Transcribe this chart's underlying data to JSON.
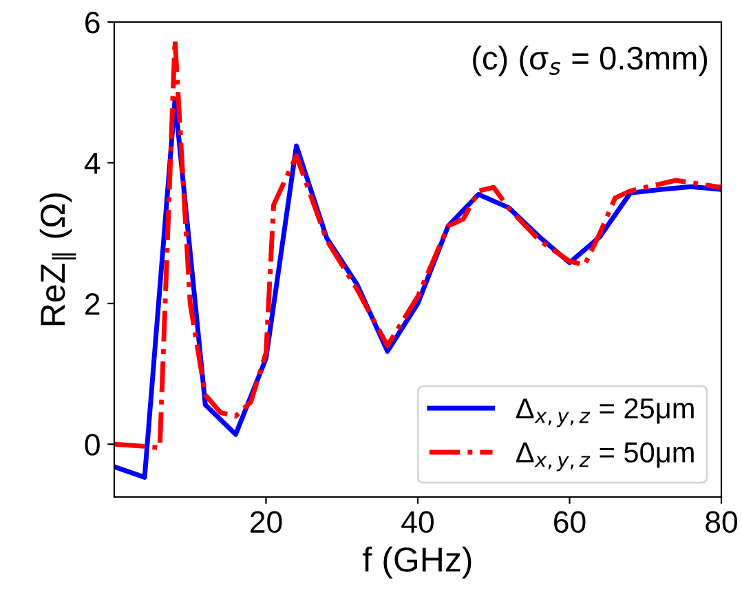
{
  "chart_data": {
    "type": "line",
    "title": "(c) (σ$_{s}$ = 0.3mm)",
    "xlabel": "f (GHz)",
    "ylabel": "ReZ$_{‖}$ (Ω)",
    "xlim": [
      0,
      80
    ],
    "xticks": [
      20,
      40,
      60,
      80
    ],
    "ylim": [
      -0.75,
      6
    ],
    "yticks": [
      0,
      2,
      4,
      6
    ],
    "grid": false,
    "legend": "bottom right",
    "series": [
      {
        "name": "Δ$_{x,y,z}$ = 25μm",
        "color": "#0000ff",
        "line_style": "solid",
        "x": [
          0,
          4,
          8,
          12,
          16,
          20,
          24,
          28,
          32,
          36,
          40,
          44,
          48,
          52,
          56,
          60,
          64,
          68,
          72,
          76,
          80
        ],
        "values": [
          -0.32,
          -0.47,
          4.9,
          0.56,
          0.14,
          1.22,
          4.24,
          2.93,
          2.27,
          1.32,
          2.0,
          3.1,
          3.55,
          3.36,
          2.95,
          2.58,
          2.95,
          3.57,
          3.62,
          3.66,
          3.62
        ]
      },
      {
        "name": "Δ$_{x,y,z}$ = 50μm",
        "color": "#ff0000",
        "line_style": "dashdot",
        "x": [
          0,
          4,
          6,
          8,
          10,
          12,
          14,
          16,
          18,
          20,
          21,
          24,
          28,
          32,
          36,
          40,
          44,
          46,
          48,
          50,
          52,
          56,
          60,
          62,
          64,
          66,
          68,
          72,
          74,
          80
        ],
        "values": [
          0,
          -0.03,
          -0.05,
          5.75,
          2.0,
          0.7,
          0.45,
          0.4,
          0.6,
          1.3,
          3.4,
          4.1,
          2.9,
          2.2,
          1.4,
          2.1,
          3.1,
          3.2,
          3.6,
          3.65,
          3.35,
          2.9,
          2.6,
          2.55,
          3.0,
          3.5,
          3.6,
          3.7,
          3.75,
          3.65
        ]
      }
    ]
  }
}
